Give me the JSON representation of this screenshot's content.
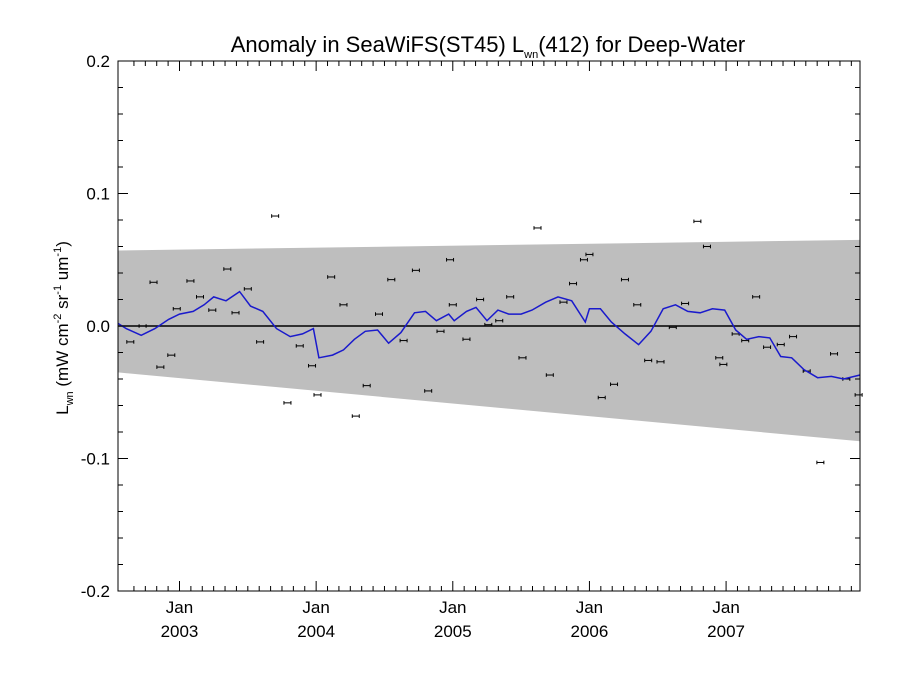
{
  "chart_data": {
    "type": "scatter",
    "title": {
      "prefix": "Anomaly in SeaWiFS(ST45) L",
      "subscript": "wn",
      "suffix": "(412) for Deep-Water"
    },
    "ylabel": {
      "main": "L",
      "main_sub": "wn",
      "units_open": " (mW cm",
      "exp1": "-2",
      "sr": " sr",
      "exp2": "-1",
      "um": " um",
      "exp3": "-1",
      "units_close": ")"
    },
    "xlim": [
      2002.55,
      2007.98
    ],
    "ylim": [
      -0.2,
      0.2
    ],
    "y_ticks": [
      {
        "value": 0.2,
        "label": "0.2"
      },
      {
        "value": 0.1,
        "label": "0.1"
      },
      {
        "value": 0.0,
        "label": "0.0"
      },
      {
        "value": -0.1,
        "label": "-0.1"
      },
      {
        "value": -0.2,
        "label": "-0.2"
      }
    ],
    "x_ticks": [
      {
        "value": 2003.0,
        "line1": "Jan",
        "line2": "2003"
      },
      {
        "value": 2004.0,
        "line1": "Jan",
        "line2": "2004"
      },
      {
        "value": 2005.0,
        "line1": "Jan",
        "line2": "2005"
      },
      {
        "value": 2006.0,
        "line1": "Jan",
        "line2": "2006"
      },
      {
        "value": 2007.0,
        "line1": "Jan",
        "line2": "2007"
      }
    ],
    "band": {
      "upper": [
        [
          2002.55,
          0.057
        ],
        [
          2007.98,
          0.065
        ]
      ],
      "lower": [
        [
          2002.55,
          -0.035
        ],
        [
          2007.98,
          -0.087
        ]
      ],
      "color": "#bebebe"
    },
    "zero_line": 0.0,
    "points": [
      [
        2002.64,
        -0.012
      ],
      [
        2002.73,
        0.0
      ],
      [
        2002.81,
        0.033
      ],
      [
        2002.86,
        -0.031
      ],
      [
        2002.94,
        -0.022
      ],
      [
        2002.98,
        0.013
      ],
      [
        2003.08,
        0.034
      ],
      [
        2003.15,
        0.022
      ],
      [
        2003.24,
        0.012
      ],
      [
        2003.35,
        0.043
      ],
      [
        2003.41,
        0.01
      ],
      [
        2003.5,
        0.028
      ],
      [
        2003.59,
        -0.012
      ],
      [
        2003.7,
        0.083
      ],
      [
        2003.79,
        -0.058
      ],
      [
        2003.88,
        -0.015
      ],
      [
        2003.97,
        -0.03
      ],
      [
        2004.01,
        -0.052
      ],
      [
        2004.11,
        0.037
      ],
      [
        2004.2,
        0.016
      ],
      [
        2004.29,
        -0.068
      ],
      [
        2004.37,
        -0.045
      ],
      [
        2004.46,
        0.009
      ],
      [
        2004.55,
        0.035
      ],
      [
        2004.64,
        -0.011
      ],
      [
        2004.73,
        0.042
      ],
      [
        2004.82,
        -0.049
      ],
      [
        2004.91,
        -0.004
      ],
      [
        2004.98,
        0.05
      ],
      [
        2005.0,
        0.016
      ],
      [
        2005.1,
        -0.01
      ],
      [
        2005.2,
        0.02
      ],
      [
        2005.26,
        0.001
      ],
      [
        2005.34,
        0.004
      ],
      [
        2005.42,
        0.022
      ],
      [
        2005.51,
        -0.024
      ],
      [
        2005.62,
        0.074
      ],
      [
        2005.71,
        -0.037
      ],
      [
        2005.81,
        0.018
      ],
      [
        2005.88,
        0.032
      ],
      [
        2005.96,
        0.05
      ],
      [
        2006.0,
        0.054
      ],
      [
        2006.09,
        -0.054
      ],
      [
        2006.18,
        -0.044
      ],
      [
        2006.26,
        0.035
      ],
      [
        2006.35,
        0.016
      ],
      [
        2006.43,
        -0.026
      ],
      [
        2006.52,
        -0.027
      ],
      [
        2006.61,
        -0.001
      ],
      [
        2006.7,
        0.017
      ],
      [
        2006.79,
        0.079
      ],
      [
        2006.86,
        0.06
      ],
      [
        2006.95,
        -0.024
      ],
      [
        2006.98,
        -0.029
      ],
      [
        2007.07,
        -0.006
      ],
      [
        2007.14,
        -0.011
      ],
      [
        2007.22,
        0.022
      ],
      [
        2007.3,
        -0.016
      ],
      [
        2007.4,
        -0.014
      ],
      [
        2007.49,
        -0.008
      ],
      [
        2007.59,
        -0.034
      ],
      [
        2007.69,
        -0.103
      ],
      [
        2007.79,
        -0.021
      ],
      [
        2007.88,
        -0.04
      ],
      [
        2007.97,
        -0.052
      ]
    ],
    "trend": [
      [
        2002.55,
        0.002
      ],
      [
        2002.61,
        -0.002
      ],
      [
        2002.72,
        -0.007
      ],
      [
        2002.82,
        -0.002
      ],
      [
        2002.92,
        0.005
      ],
      [
        2003.0,
        0.009
      ],
      [
        2003.1,
        0.011
      ],
      [
        2003.18,
        0.016
      ],
      [
        2003.25,
        0.022
      ],
      [
        2003.34,
        0.019
      ],
      [
        2003.44,
        0.026
      ],
      [
        2003.52,
        0.015
      ],
      [
        2003.61,
        0.011
      ],
      [
        2003.71,
        -0.002
      ],
      [
        2003.81,
        -0.008
      ],
      [
        2003.9,
        -0.006
      ],
      [
        2003.98,
        -0.002
      ],
      [
        2004.02,
        -0.024
      ],
      [
        2004.12,
        -0.022
      ],
      [
        2004.2,
        -0.018
      ],
      [
        2004.28,
        -0.01
      ],
      [
        2004.36,
        -0.004
      ],
      [
        2004.45,
        -0.003
      ],
      [
        2004.53,
        -0.013
      ],
      [
        2004.62,
        -0.005
      ],
      [
        2004.72,
        0.01
      ],
      [
        2004.8,
        0.011
      ],
      [
        2004.88,
        0.004
      ],
      [
        2004.97,
        0.009
      ],
      [
        2005.01,
        0.004
      ],
      [
        2005.1,
        0.011
      ],
      [
        2005.17,
        0.014
      ],
      [
        2005.25,
        0.004
      ],
      [
        2005.33,
        0.012
      ],
      [
        2005.41,
        0.009
      ],
      [
        2005.5,
        0.009
      ],
      [
        2005.58,
        0.012
      ],
      [
        2005.68,
        0.018
      ],
      [
        2005.77,
        0.022
      ],
      [
        2005.87,
        0.019
      ],
      [
        2005.97,
        0.003
      ],
      [
        2006.0,
        0.013
      ],
      [
        2006.08,
        0.013
      ],
      [
        2006.16,
        0.003
      ],
      [
        2006.26,
        -0.006
      ],
      [
        2006.36,
        -0.014
      ],
      [
        2006.45,
        -0.004
      ],
      [
        2006.54,
        0.013
      ],
      [
        2006.63,
        0.016
      ],
      [
        2006.72,
        0.011
      ],
      [
        2006.81,
        0.01
      ],
      [
        2006.9,
        0.013
      ],
      [
        2006.99,
        0.012
      ],
      [
        2007.07,
        -0.003
      ],
      [
        2007.15,
        -0.01
      ],
      [
        2007.24,
        -0.008
      ],
      [
        2007.32,
        -0.009
      ],
      [
        2007.4,
        -0.023
      ],
      [
        2007.48,
        -0.024
      ],
      [
        2007.57,
        -0.033
      ],
      [
        2007.67,
        -0.039
      ],
      [
        2007.77,
        -0.038
      ],
      [
        2007.86,
        -0.04
      ],
      [
        2007.98,
        -0.037
      ]
    ],
    "trend_color": "#1a1acc",
    "point_color": "#000000",
    "error_bar": 0.0012
  }
}
